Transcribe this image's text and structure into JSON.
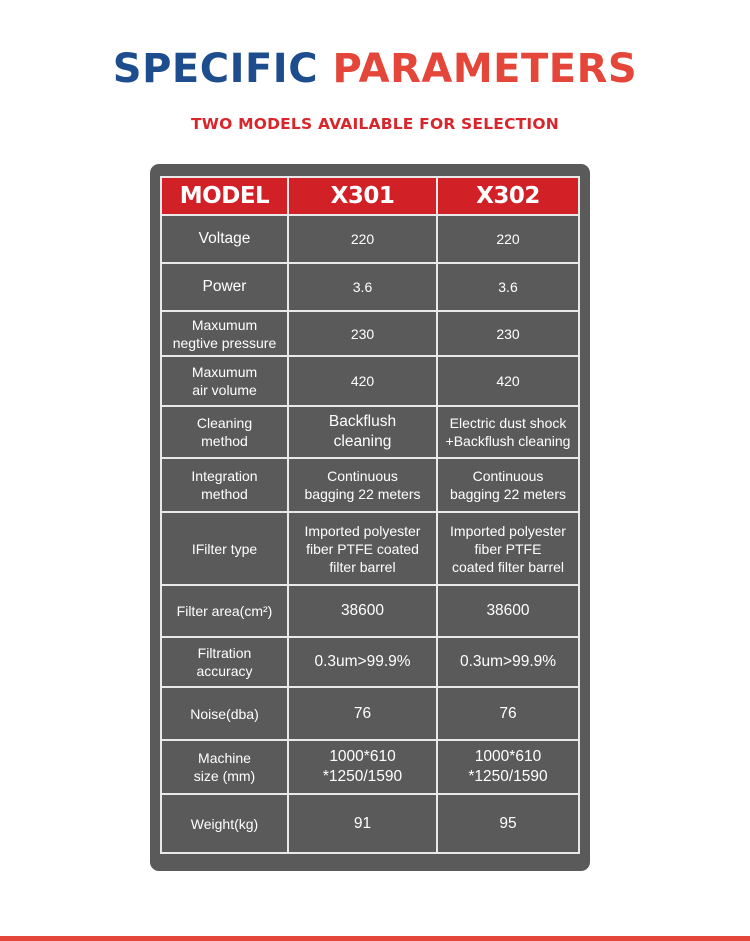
{
  "header": {
    "title_part1": "SPECIFIC",
    "title_part2": "PARAMETERS",
    "subtitle": "TWO MODELS AVAILABLE FOR SELECTION"
  },
  "colors": {
    "title_blue": "#1d4d8d",
    "title_red": "#e4463a",
    "header_row_red": "#d12026",
    "panel_gray": "#5a5a5a"
  },
  "table": {
    "columns": [
      "MODEL",
      "X301",
      "X302"
    ],
    "rows": [
      {
        "label": [
          "Voltage"
        ],
        "x301": [
          "220"
        ],
        "x302": [
          "220"
        ]
      },
      {
        "label": [
          "Power"
        ],
        "x301": [
          "3.6"
        ],
        "x302": [
          "3.6"
        ]
      },
      {
        "label": [
          "Maxumum",
          "negtive pressure"
        ],
        "x301": [
          "230"
        ],
        "x302": [
          "230"
        ]
      },
      {
        "label": [
          "Maxumum",
          "air volume"
        ],
        "x301": [
          "420"
        ],
        "x302": [
          "420"
        ]
      },
      {
        "label": [
          "Cleaning",
          "method"
        ],
        "x301": [
          "Backflush",
          "cleaning"
        ],
        "x302": [
          "Electric dust shock",
          "+Backflush cleaning"
        ]
      },
      {
        "label": [
          "Integration",
          "method"
        ],
        "x301": [
          "Continuous",
          "bagging 22 meters"
        ],
        "x302": [
          "Continuous",
          "bagging 22 meters"
        ]
      },
      {
        "label": [
          "IFilter type"
        ],
        "x301": [
          "Imported polyester",
          "fiber PTFE coated",
          "filter barrel"
        ],
        "x302": [
          "Imported polyester",
          "fiber PTFE",
          "coated filter barrel"
        ]
      },
      {
        "label": [
          "Filter area(cm²)"
        ],
        "x301": [
          "38600"
        ],
        "x302": [
          "38600"
        ]
      },
      {
        "label": [
          "Filtration",
          "accuracy"
        ],
        "x301": [
          "0.3um>99.9%"
        ],
        "x302": [
          "0.3um>99.9%"
        ]
      },
      {
        "label": [
          "Noise(dba)"
        ],
        "x301": [
          "76"
        ],
        "x302": [
          "76"
        ]
      },
      {
        "label": [
          "Machine",
          "size (mm)"
        ],
        "x301": [
          "1000*610",
          "*1250/1590"
        ],
        "x302": [
          "1000*610",
          "*1250/1590"
        ]
      },
      {
        "label": [
          "Weight(kg)"
        ],
        "x301": [
          "91"
        ],
        "x302": [
          "95"
        ]
      }
    ]
  }
}
